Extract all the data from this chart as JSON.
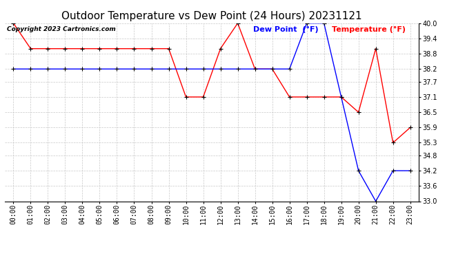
{
  "title": "Outdoor Temperature vs Dew Point (24 Hours) 20231121",
  "copyright": "Copyright 2023 Cartronics.com",
  "legend_dew": "Dew Point  (°F)",
  "legend_temp": "Temperature (°F)",
  "hours": [
    "00:00",
    "01:00",
    "02:00",
    "03:00",
    "04:00",
    "05:00",
    "06:00",
    "07:00",
    "08:00",
    "09:00",
    "10:00",
    "11:00",
    "12:00",
    "13:00",
    "14:00",
    "15:00",
    "16:00",
    "17:00",
    "18:00",
    "19:00",
    "20:00",
    "21:00",
    "22:00",
    "23:00"
  ],
  "temperature": [
    40.0,
    39.0,
    39.0,
    39.0,
    39.0,
    39.0,
    39.0,
    39.0,
    39.0,
    39.0,
    37.1,
    37.1,
    39.0,
    40.0,
    38.2,
    38.2,
    37.1,
    37.1,
    37.1,
    37.1,
    36.5,
    39.0,
    35.3,
    35.9
  ],
  "dew_point": [
    38.2,
    38.2,
    38.2,
    38.2,
    38.2,
    38.2,
    38.2,
    38.2,
    38.2,
    38.2,
    38.2,
    38.2,
    38.2,
    38.2,
    38.2,
    38.2,
    38.2,
    40.0,
    40.0,
    37.1,
    34.2,
    33.0,
    34.2,
    34.2
  ],
  "temp_color": "#ff0000",
  "dew_color": "#0000ff",
  "marker_color": "#000000",
  "bg_color": "#ffffff",
  "grid_color": "#c8c8c8",
  "ylim_min": 33.0,
  "ylim_max": 40.0,
  "yticks": [
    33.0,
    33.6,
    34.2,
    34.8,
    35.3,
    35.9,
    36.5,
    37.1,
    37.7,
    38.2,
    38.8,
    39.4,
    40.0
  ],
  "title_fontsize": 11,
  "legend_fontsize": 8,
  "copyright_fontsize": 6.5,
  "tick_fontsize": 7
}
